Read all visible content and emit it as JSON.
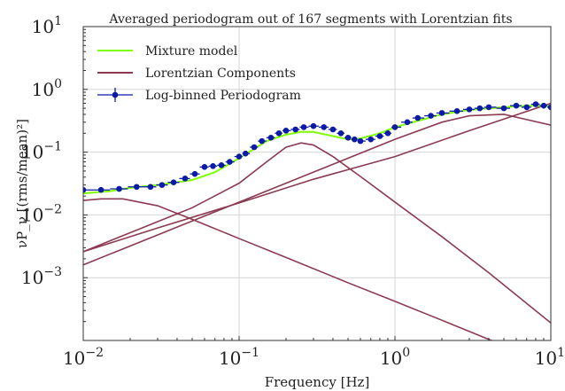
{
  "chart_data": {
    "type": "line",
    "title": "Averaged periodogram out of 167 segments with Lorentzian fits",
    "xlabel": "Frequency [Hz]",
    "ylabel": "νP_ν [(rms/mean)²]",
    "xscale": "log",
    "yscale": "log",
    "xlim": [
      0.01,
      10
    ],
    "ylim": [
      0.0001,
      10
    ],
    "grid": true,
    "legend_position": "top-left",
    "x_ticks": [
      {
        "value": 0.01,
        "base": "10",
        "exp": "−2"
      },
      {
        "value": 0.1,
        "base": "10",
        "exp": "−1"
      },
      {
        "value": 1,
        "base": "10",
        "exp": "0"
      },
      {
        "value": 10,
        "base": "10",
        "exp": "1"
      }
    ],
    "y_ticks": [
      {
        "value": 10,
        "base": "10",
        "exp": "1"
      },
      {
        "value": 1,
        "base": "10",
        "exp": "0"
      },
      {
        "value": 0.1,
        "base": "10",
        "exp": "−1"
      },
      {
        "value": 0.01,
        "base": "10",
        "exp": "−2"
      },
      {
        "value": 0.001,
        "base": "10",
        "exp": "−3"
      }
    ],
    "colors": {
      "mixture": "#7fff00",
      "lorentzian": "#8b3a52",
      "periodogram": "#0b1ba8"
    },
    "legend": [
      {
        "label": "Mixture model",
        "kind": "mixture"
      },
      {
        "label": "Lorentzian Components",
        "kind": "lorentzian"
      },
      {
        "label": "Log-binned Periodogram",
        "kind": "periodogram"
      }
    ],
    "lorentzian_components": [
      {
        "x": [
          0.01,
          0.013,
          0.018,
          0.03,
          0.05,
          0.1,
          0.2,
          0.5,
          1,
          2,
          5,
          10
        ],
        "y": [
          0.017,
          0.018,
          0.018,
          0.014,
          0.0085,
          0.0042,
          0.0021,
          0.00083,
          0.00042,
          0.00021,
          8.3e-05,
          4.2e-05
        ]
      },
      {
        "x": [
          0.01,
          0.03,
          0.05,
          0.1,
          0.15,
          0.2,
          0.25,
          0.3,
          0.4,
          0.6,
          1,
          2,
          4,
          10
        ],
        "y": [
          0.0026,
          0.0078,
          0.013,
          0.032,
          0.07,
          0.12,
          0.14,
          0.13,
          0.085,
          0.041,
          0.016,
          0.0045,
          0.0012,
          0.00019
        ]
      },
      {
        "x": [
          0.01,
          0.03,
          0.1,
          0.3,
          1,
          2,
          3,
          5,
          7,
          10
        ],
        "y": [
          0.0016,
          0.0048,
          0.016,
          0.048,
          0.16,
          0.3,
          0.38,
          0.4,
          0.33,
          0.27
        ]
      },
      {
        "x": [
          0.01,
          0.03,
          0.1,
          0.3,
          1,
          3,
          10
        ],
        "y": [
          0.0026,
          0.0062,
          0.0155,
          0.037,
          0.085,
          0.22,
          0.6
        ]
      }
    ],
    "mixture_model": {
      "x": [
        0.01,
        0.015,
        0.02,
        0.03,
        0.05,
        0.07,
        0.1,
        0.15,
        0.2,
        0.25,
        0.3,
        0.4,
        0.5,
        0.6,
        0.8,
        1,
        1.5,
        2,
        3,
        5,
        7,
        10
      ],
      "y": [
        0.022,
        0.024,
        0.027,
        0.03,
        0.036,
        0.048,
        0.08,
        0.15,
        0.19,
        0.21,
        0.21,
        0.18,
        0.16,
        0.165,
        0.2,
        0.25,
        0.33,
        0.4,
        0.47,
        0.52,
        0.55,
        0.54
      ]
    },
    "periodogram": {
      "x": [
        0.01,
        0.013,
        0.017,
        0.022,
        0.027,
        0.032,
        0.038,
        0.045,
        0.052,
        0.06,
        0.068,
        0.077,
        0.087,
        0.1,
        0.11,
        0.125,
        0.14,
        0.16,
        0.18,
        0.2,
        0.23,
        0.26,
        0.3,
        0.35,
        0.4,
        0.45,
        0.5,
        0.55,
        0.6,
        0.7,
        0.8,
        0.9,
        1.0,
        1.2,
        1.4,
        1.7,
        2.0,
        2.5,
        3.0,
        3.5,
        4.0,
        5.0,
        6.0,
        7.0,
        8.0,
        9.0,
        10.0
      ],
      "y": [
        0.025,
        0.025,
        0.026,
        0.028,
        0.028,
        0.03,
        0.033,
        0.038,
        0.045,
        0.058,
        0.06,
        0.062,
        0.07,
        0.085,
        0.095,
        0.12,
        0.15,
        0.17,
        0.2,
        0.22,
        0.23,
        0.25,
        0.26,
        0.25,
        0.23,
        0.2,
        0.17,
        0.16,
        0.15,
        0.16,
        0.18,
        0.2,
        0.25,
        0.3,
        0.35,
        0.38,
        0.42,
        0.45,
        0.48,
        0.5,
        0.52,
        0.5,
        0.55,
        0.52,
        0.58,
        0.55,
        0.52
      ]
    }
  }
}
